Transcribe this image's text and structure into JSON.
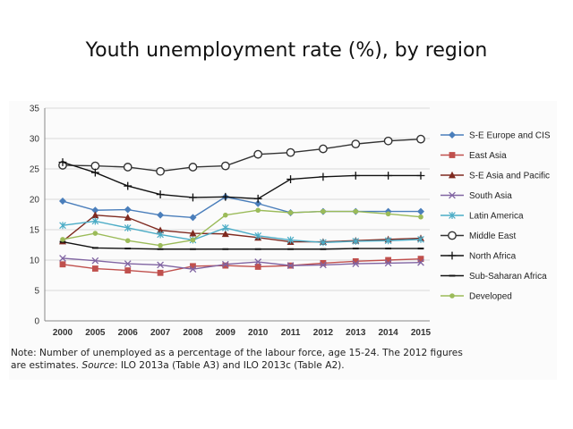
{
  "title": "Youth unemployment rate (%), by region",
  "note": {
    "line1": "Note: Number of unemployed as a percentage of the labour force, age 15-24. The 2012 figures",
    "line2_prefix": "are estimates. ",
    "line2_source_label": "Source",
    "line2_rest": ": ILO 2013a (Table A3) and ILO 2013c (Table A2)."
  },
  "chart_data": {
    "type": "line",
    "title": "Youth unemployment rate (%), by region",
    "xlabel": "",
    "ylabel": "",
    "categories": [
      "2000",
      "2005",
      "2006",
      "2007",
      "2008",
      "2009",
      "2010",
      "2011",
      "2012",
      "2013",
      "2014",
      "2015"
    ],
    "ylim": [
      0,
      35
    ],
    "yticks": [
      0,
      5,
      10,
      15,
      20,
      25,
      30,
      35
    ],
    "grid": true,
    "legend_position": "right",
    "series": [
      {
        "name": "S-E Europe and CIS",
        "color": "#4a7ebb",
        "marker": "diamond",
        "values": [
          19.7,
          18.2,
          18.3,
          17.4,
          17.0,
          20.4,
          19.3,
          17.8,
          18.0,
          18.0,
          18.0,
          18.0
        ]
      },
      {
        "name": "East Asia",
        "color": "#c0504d",
        "marker": "square",
        "values": [
          9.3,
          8.6,
          8.3,
          7.9,
          9.0,
          9.1,
          8.9,
          9.1,
          9.5,
          9.8,
          10.0,
          10.2
        ]
      },
      {
        "name": "S-E Asia and Pacific",
        "color": "#7f2a20",
        "marker": "triangle",
        "values": [
          13.1,
          17.4,
          17.0,
          14.9,
          14.4,
          14.3,
          13.7,
          13.0,
          13.0,
          13.2,
          13.4,
          13.6
        ]
      },
      {
        "name": "South Asia",
        "color": "#8064a2",
        "marker": "x",
        "values": [
          10.3,
          9.9,
          9.4,
          9.2,
          8.5,
          9.3,
          9.7,
          9.1,
          9.2,
          9.4,
          9.5,
          9.6
        ]
      },
      {
        "name": "Latin America",
        "color": "#4bacc6",
        "marker": "star",
        "values": [
          15.7,
          16.4,
          15.3,
          14.2,
          13.3,
          15.3,
          14.0,
          13.3,
          12.9,
          13.1,
          13.2,
          13.4
        ]
      },
      {
        "name": "Middle East",
        "color": "#333333",
        "marker": "circle",
        "values": [
          25.6,
          25.5,
          25.3,
          24.6,
          25.3,
          25.5,
          27.4,
          27.7,
          28.3,
          29.1,
          29.6,
          29.9
        ]
      },
      {
        "name": "North Africa",
        "color": "#111111",
        "marker": "plus",
        "values": [
          26.1,
          24.4,
          22.2,
          20.8,
          20.3,
          20.4,
          20.1,
          23.3,
          23.7,
          23.9,
          23.9,
          23.9
        ]
      },
      {
        "name": "Sub-Saharan Africa",
        "color": "#111111",
        "marker": "dash",
        "values": [
          13.0,
          12.0,
          11.9,
          11.8,
          11.8,
          11.8,
          11.8,
          11.8,
          11.8,
          11.9,
          11.9,
          11.9
        ]
      },
      {
        "name": "Developed",
        "color": "#9bbb59",
        "marker": "dot",
        "values": [
          13.4,
          14.4,
          13.2,
          12.4,
          13.3,
          17.4,
          18.2,
          17.8,
          18.0,
          18.0,
          17.6,
          17.1
        ]
      }
    ]
  }
}
